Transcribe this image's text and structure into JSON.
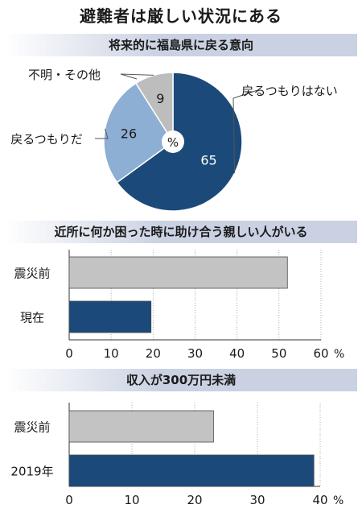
{
  "title": "避難者は厳しい状況にある",
  "chart_data": [
    {
      "type": "pie",
      "title": "将来的に福島県に戻る意向",
      "center_label": "%",
      "slices": [
        {
          "label": "戻るつもりはない",
          "value": 65,
          "color": "#1b4a7a"
        },
        {
          "label": "戻るつもりだ",
          "value": 26,
          "color": "#8eafd4"
        },
        {
          "label": "不明・その他",
          "value": 9,
          "color": "#bdbdbd"
        }
      ]
    },
    {
      "type": "bar",
      "orientation": "horizontal",
      "title": "近所に何か困った時に助け合う親しい人がいる",
      "categories": [
        "震災前",
        "現在"
      ],
      "values": [
        52,
        19.5
      ],
      "colors": [
        "#c3c3c3",
        "#1b4a7a"
      ],
      "xlim": [
        0,
        60
      ],
      "xticks": [
        0,
        10,
        20,
        30,
        40,
        50,
        60
      ],
      "unit": "%"
    },
    {
      "type": "bar",
      "orientation": "horizontal",
      "title": "収入が300万円未満",
      "categories": [
        "震災前",
        "2019年"
      ],
      "values": [
        23,
        39
      ],
      "colors": [
        "#c3c3c3",
        "#1b4a7a"
      ],
      "xlim": [
        0,
        40
      ],
      "xticks": [
        0,
        10,
        20,
        30,
        40
      ],
      "unit": "%"
    }
  ]
}
